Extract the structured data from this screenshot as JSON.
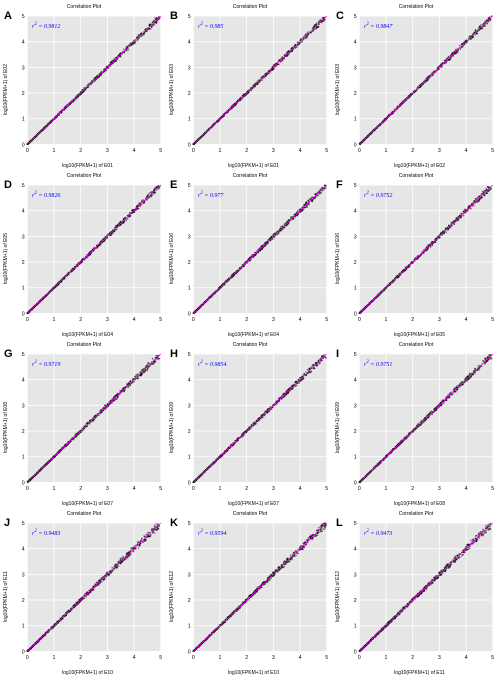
{
  "figure": {
    "cols": 3,
    "rows": 4,
    "panel_title": "Correlation Plot",
    "title_fontsize": 5,
    "letter_fontsize": 11,
    "axis_label_fontsize": 5,
    "r2_fontsize": 6,
    "r2_color": "#0000ff",
    "plot_bg": "#e6e6e6",
    "grid_color": "#ffffff",
    "diag_line_color": "#ff00ff",
    "point_color": "#000000",
    "xlim": [
      0,
      5
    ],
    "ylim": [
      0,
      5
    ],
    "tick_step": 1
  },
  "panels": [
    {
      "letter": "A",
      "r2": "0.9812",
      "xlab": "log10(FPKM+1) of E01",
      "ylab": "log10(FPKM+1) of E02",
      "seed": 1
    },
    {
      "letter": "B",
      "r2": "0.985",
      "xlab": "log10(FPKM+1) of E01",
      "ylab": "log10(FPKM+1) of E03",
      "seed": 2
    },
    {
      "letter": "C",
      "r2": "0.9847",
      "xlab": "log10(FPKM+1) of E02",
      "ylab": "log10(FPKM+1) of E03",
      "seed": 3
    },
    {
      "letter": "D",
      "r2": "0.9826",
      "xlab": "log10(FPKM+1) of E04",
      "ylab": "log10(FPKM+1) of E05",
      "seed": 4
    },
    {
      "letter": "E",
      "r2": "0.977",
      "xlab": "log10(FPKM+1) of E04",
      "ylab": "log10(FPKM+1) of E06",
      "seed": 5
    },
    {
      "letter": "F",
      "r2": "0.9752",
      "xlab": "log10(FPKM+1) of E05",
      "ylab": "log10(FPKM+1) of E06",
      "seed": 6
    },
    {
      "letter": "G",
      "r2": "0.9719",
      "xlab": "log10(FPKM+1) of E07",
      "ylab": "log10(FPKM+1) of E08",
      "seed": 7
    },
    {
      "letter": "H",
      "r2": "0.9854",
      "xlab": "log10(FPKM+1) of E07",
      "ylab": "log10(FPKM+1) of E09",
      "seed": 8
    },
    {
      "letter": "I",
      "r2": "0.9751",
      "xlab": "log10(FPKM+1) of E08",
      "ylab": "log10(FPKM+1) of E09",
      "seed": 9
    },
    {
      "letter": "J",
      "r2": "0.9483",
      "xlab": "log10(FPKM+1) of E10",
      "ylab": "log10(FPKM+1) of E11",
      "seed": 10
    },
    {
      "letter": "K",
      "r2": "0.9594",
      "xlab": "log10(FPKM+1) of E10",
      "ylab": "log10(FPKM+1) of E12",
      "seed": 11
    },
    {
      "letter": "L",
      "r2": "0.9473",
      "xlab": "log10(FPKM+1) of E11",
      "ylab": "log10(FPKM+1) of E12",
      "seed": 12
    }
  ],
  "scatter": {
    "n_points": 900,
    "noise_base": 0.02,
    "noise_span": 0.3
  }
}
